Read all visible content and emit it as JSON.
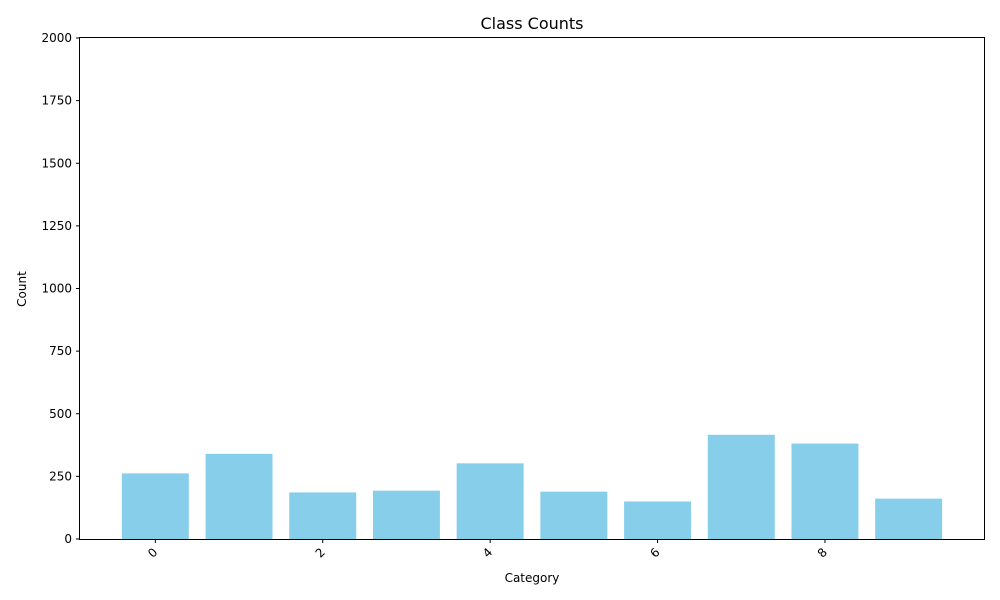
{
  "chart_data": {
    "type": "bar",
    "title": "Class Counts",
    "xlabel": "Category",
    "ylabel": "Count",
    "categories": [
      0,
      1,
      2,
      3,
      4,
      5,
      6,
      7,
      8,
      9
    ],
    "values": [
      262,
      340,
      186,
      193,
      302,
      189,
      150,
      416,
      381,
      161
    ],
    "x_ticks": [
      "0",
      "2",
      "4",
      "6",
      "8"
    ],
    "x_tick_values": [
      0,
      2,
      4,
      6,
      8
    ],
    "y_ticks": [
      "0",
      "250",
      "500",
      "750",
      "1000",
      "1250",
      "1500",
      "1750",
      "2000"
    ],
    "y_tick_values": [
      0,
      250,
      500,
      750,
      1000,
      1250,
      1500,
      1750,
      2000
    ],
    "ylim": [
      0,
      2000
    ],
    "x_tick_rotation_deg": 45,
    "bar_color": "#87ceeb",
    "grid": false,
    "legend": "none"
  }
}
